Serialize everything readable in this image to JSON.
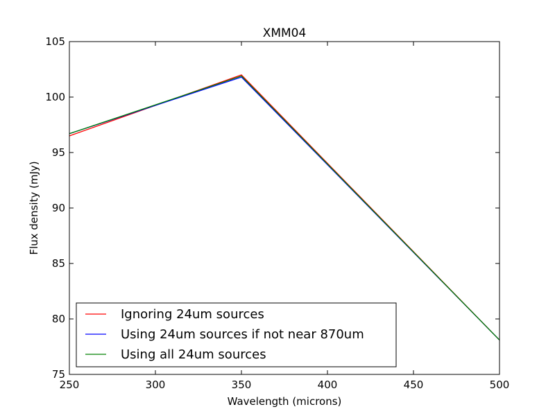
{
  "chart_data": {
    "type": "line",
    "title": "XMM04",
    "xlabel": "Wavelength (microns)",
    "ylabel": "Flux density (mJy)",
    "xlim": [
      250,
      500
    ],
    "ylim": [
      75,
      105
    ],
    "xticks": [
      250,
      300,
      350,
      400,
      450,
      500
    ],
    "yticks": [
      75,
      80,
      85,
      90,
      95,
      100,
      105
    ],
    "grid": false,
    "legend_position": "bottom-left",
    "x": [
      250,
      350,
      500
    ],
    "series": [
      {
        "name": "Ignoring 24um sources",
        "color": "#ff0000",
        "values": [
          96.5,
          102.0,
          78.1
        ]
      },
      {
        "name": "Using 24um sources if not near 870um",
        "color": "#0000ff",
        "values": [
          96.7,
          101.8,
          78.1
        ]
      },
      {
        "name": "Using all 24um sources",
        "color": "#008000",
        "values": [
          96.7,
          101.9,
          78.1
        ]
      }
    ]
  }
}
